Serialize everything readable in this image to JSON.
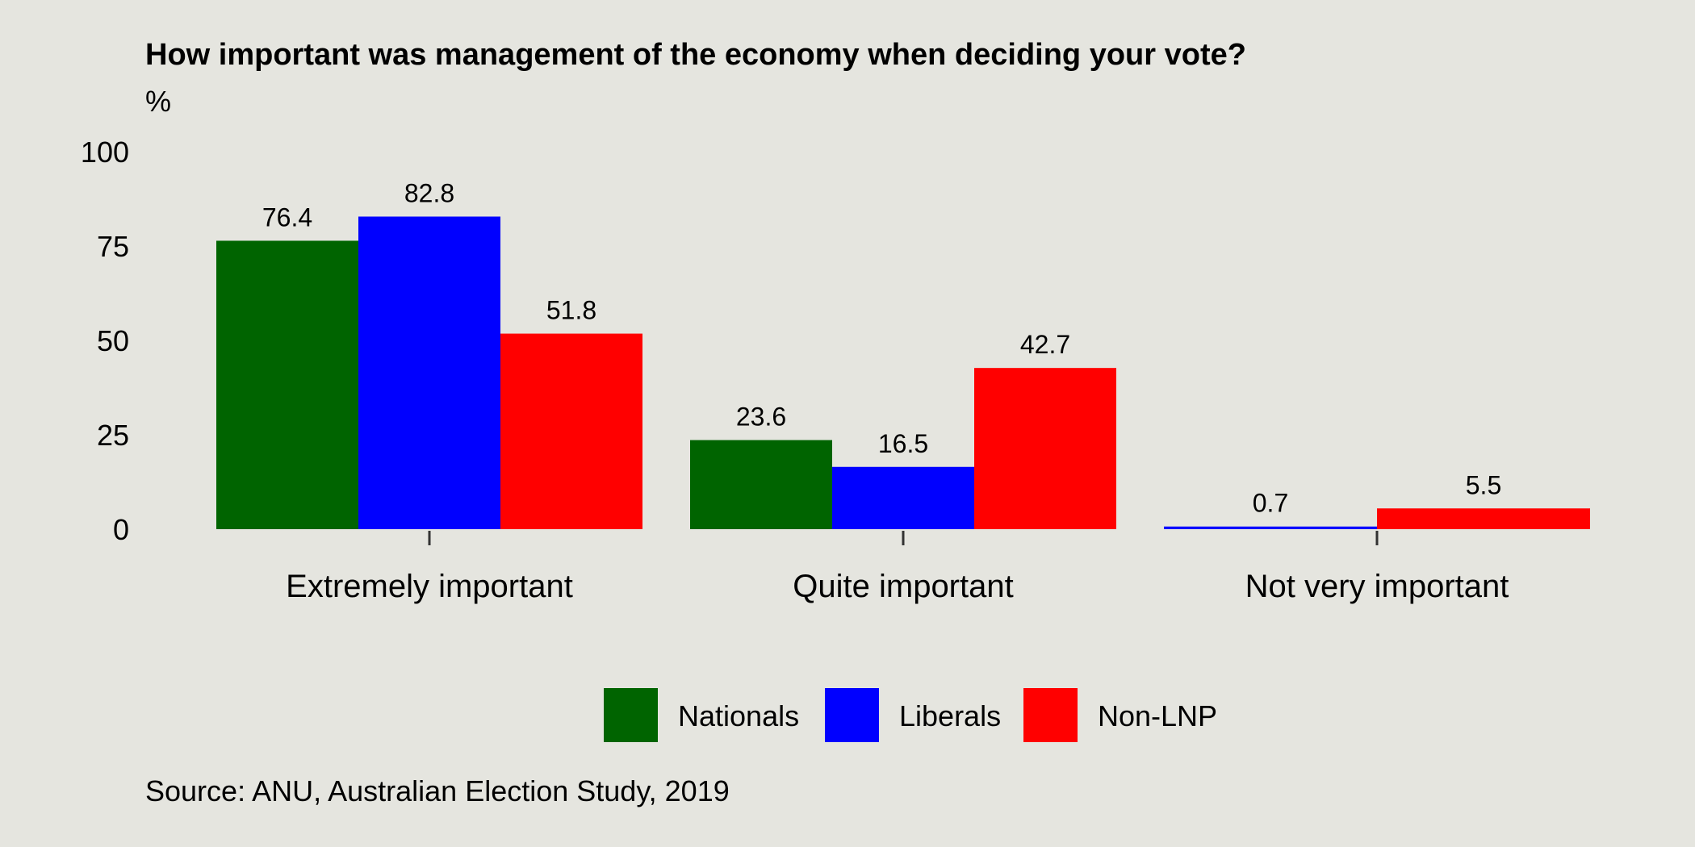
{
  "chart_data": {
    "type": "bar",
    "title": "How important was management of the economy when deciding your vote?",
    "ylabel": "%",
    "xlabel": "",
    "ylim": [
      0,
      100
    ],
    "yticks": [
      0,
      25,
      50,
      75,
      100
    ],
    "categories": [
      "Extremely important",
      "Quite important",
      "Not very important"
    ],
    "series": [
      {
        "name": "Nationals",
        "color": "#006400",
        "values": [
          76.4,
          23.6,
          null
        ]
      },
      {
        "name": "Liberals",
        "color": "#0000ff",
        "values": [
          82.8,
          16.5,
          0.7
        ]
      },
      {
        "name": "Non-LNP",
        "color": "#ff0000",
        "values": [
          51.8,
          42.7,
          5.5
        ]
      }
    ],
    "legend_position": "bottom",
    "grid": false,
    "source": "Source: ANU, Australian Election Study, 2019"
  }
}
